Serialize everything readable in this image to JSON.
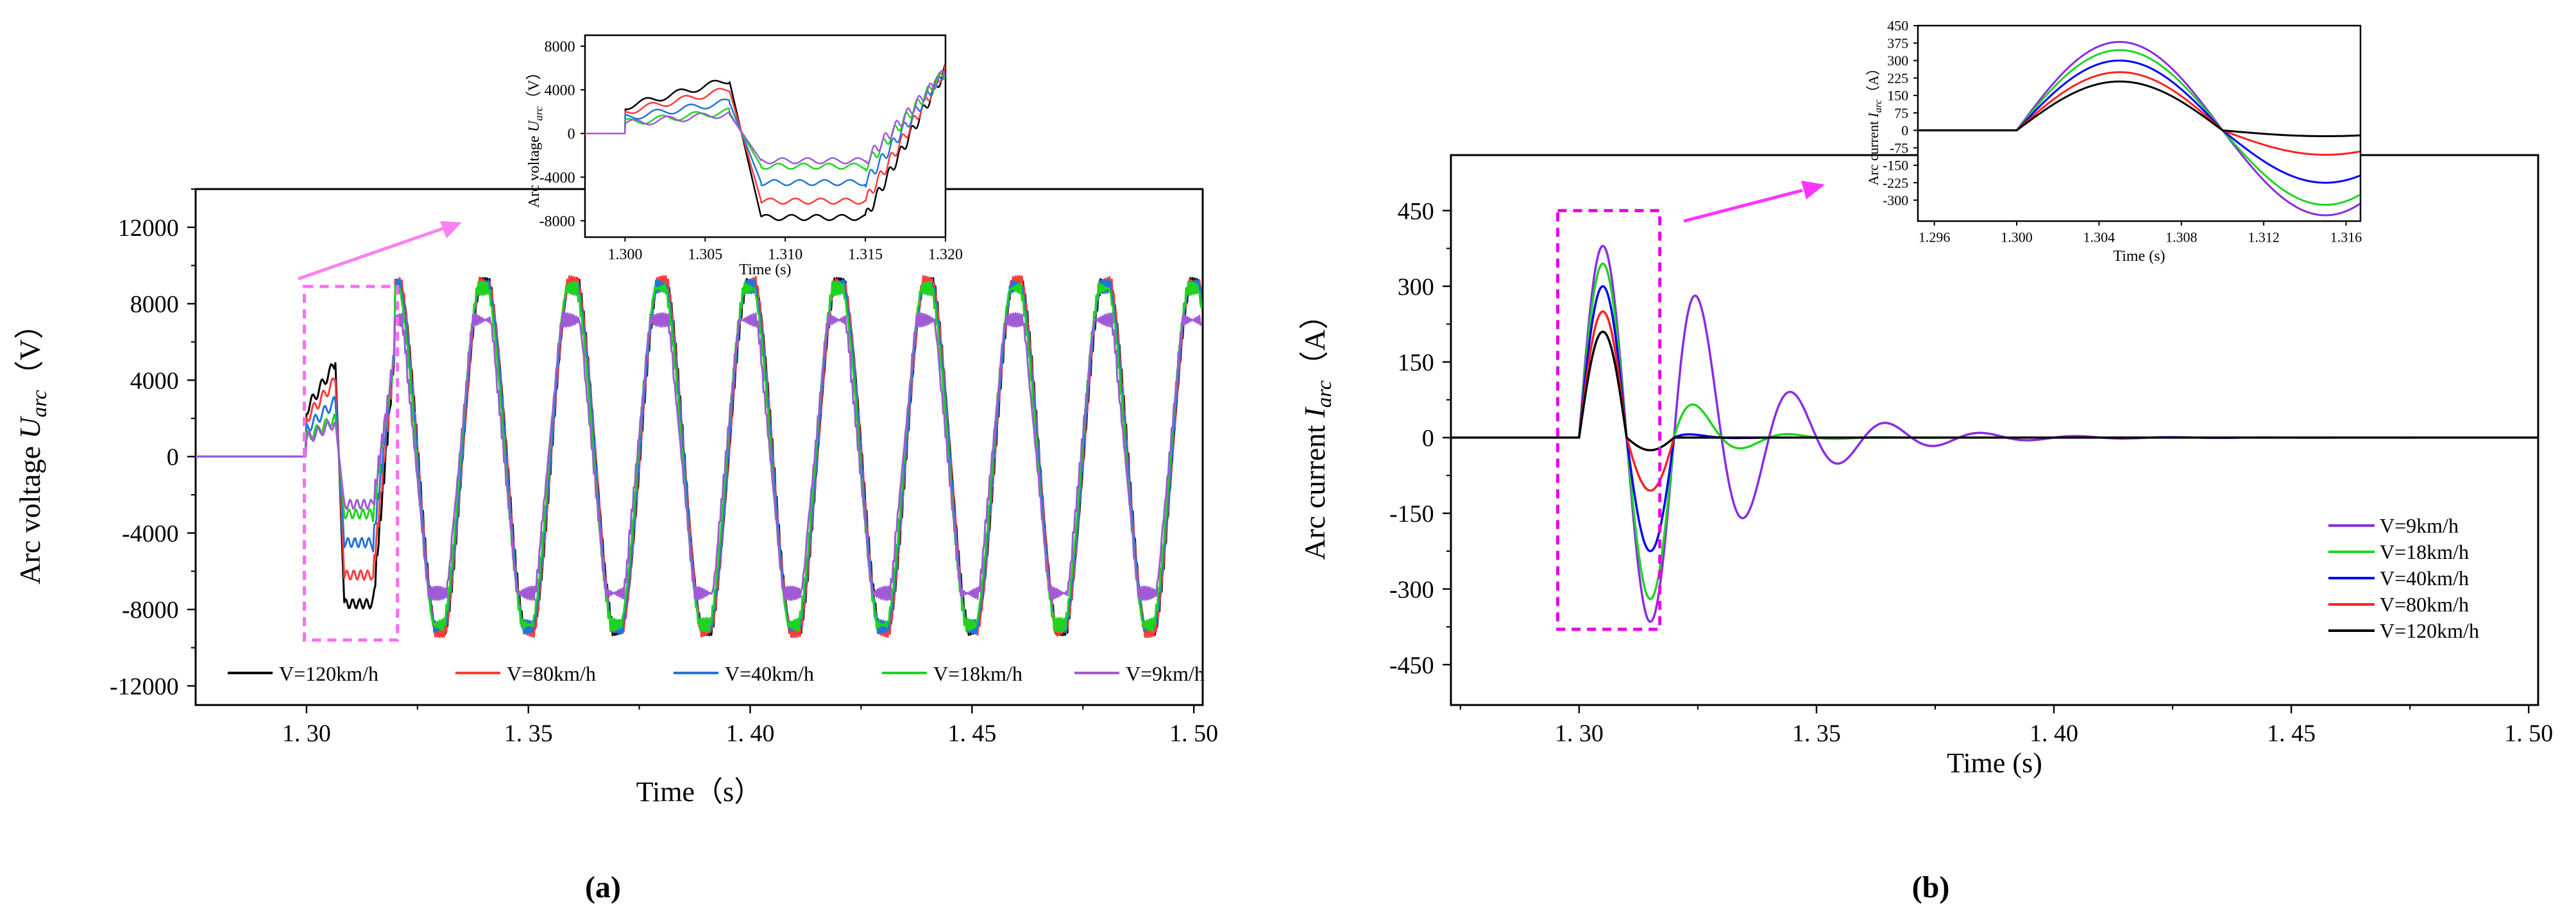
{
  "panels": [
    {
      "id": "a",
      "caption": "(a)",
      "main": {
        "type": "line",
        "xlabel": "Time（s）",
        "ylabel_prefix": "Arc voltage ",
        "ylabel_var": "U",
        "ylabel_sub": "arc",
        "ylabel_suffix": "（V）",
        "xlim": [
          1.275,
          1.502
        ],
        "ylim": [
          -13000,
          14000
        ],
        "xticks": [
          1.3,
          1.35,
          1.4,
          1.45,
          1.5
        ],
        "xtick_labels": [
          "1. 30",
          "1. 35",
          "1. 40",
          "1. 45",
          "1. 50"
        ],
        "yticks": [
          -12000,
          -8000,
          -4000,
          0,
          4000,
          8000,
          12000
        ],
        "ytick_labels": [
          "-12000",
          "-8000",
          "-4000",
          "0",
          "4000",
          "8000",
          "12000"
        ],
        "legend_position": "bottom",
        "legend_order": [
          "V=120km/h",
          "V=80km/h",
          "V=40km/h",
          "V=18km/h",
          "V=9km/h"
        ],
        "zoom_box": {
          "x": [
            1.2995,
            1.3205
          ],
          "y": [
            -9600,
            8900
          ]
        }
      },
      "inset": {
        "type": "line",
        "xlabel": "Time (s)",
        "ylabel_prefix": "Arc voltage ",
        "ylabel_var": "U",
        "ylabel_sub": "arc",
        "ylabel_suffix": "（V）",
        "xlim": [
          1.2975,
          1.32
        ],
        "ylim": [
          -9500,
          9000
        ],
        "xticks": [
          1.3,
          1.305,
          1.31,
          1.315,
          1.32
        ],
        "xtick_labels": [
          "1.300",
          "1.305",
          "1.310",
          "1.315",
          "1.320"
        ],
        "yticks": [
          -8000,
          -4000,
          0,
          4000,
          8000
        ],
        "ytick_labels": [
          "-8000",
          "-4000",
          "0",
          "4000",
          "8000"
        ]
      },
      "series": [
        {
          "name": "V=9km/h",
          "color": "#a05ad6",
          "amp": 8700,
          "phase": 0.15,
          "fault_amp": 1800,
          "fault_neg": 2500
        },
        {
          "name": "V=18km/h",
          "color": "#1fd41f",
          "amp": 8800,
          "phase": 0.08,
          "fault_amp": 2000,
          "fault_neg": 3000
        },
        {
          "name": "V=40km/h",
          "color": "#2375d8",
          "amp": 8900,
          "phase": 0.0,
          "fault_amp": 2900,
          "fault_neg": 4500
        },
        {
          "name": "V=80km/h",
          "color": "#ff3b3b",
          "amp": 9100,
          "phase": -0.04,
          "fault_amp": 4000,
          "fault_neg": 6200
        },
        {
          "name": "V=120km/h",
          "color": "#000000",
          "amp": 9000,
          "phase": -0.06,
          "fault_amp": 4900,
          "fault_neg": 7700
        }
      ]
    },
    {
      "id": "b",
      "caption": "(b)",
      "main": {
        "type": "line",
        "xlabel": "Time (s)",
        "ylabel_prefix": "Arc current ",
        "ylabel_var": "I",
        "ylabel_sub": "arc",
        "ylabel_suffix": "（A）",
        "xlim": [
          1.273,
          1.502
        ],
        "ylim": [
          -530,
          560
        ],
        "xticks": [
          1.3,
          1.35,
          1.4,
          1.45,
          1.5
        ],
        "xtick_labels": [
          "1. 30",
          "1. 35",
          "1. 40",
          "1. 45",
          "1. 50"
        ],
        "yticks": [
          -450,
          -300,
          -150,
          0,
          150,
          300,
          450
        ],
        "ytick_labels": [
          "-450",
          "-300",
          "-150",
          "0",
          "150",
          "300",
          "450"
        ],
        "legend_position": "bottom-right",
        "legend_order": [
          "V=9km/h",
          "V=18km/h",
          "V=40km/h",
          "V=80km/h",
          "V=120km/h"
        ],
        "zoom_box": {
          "x": [
            1.2955,
            1.317
          ],
          "y": [
            -380,
            450
          ]
        }
      },
      "inset": {
        "type": "line",
        "xlabel": "Time (s)",
        "ylabel_prefix": "Arc current ",
        "ylabel_var": "I",
        "ylabel_sub": "arc",
        "ylabel_suffix": "（A）",
        "xlim": [
          1.2952,
          1.3167
        ],
        "ylim": [
          -390,
          450
        ],
        "xticks": [
          1.296,
          1.3,
          1.304,
          1.308,
          1.312,
          1.316
        ],
        "xtick_labels": [
          "1.296",
          "1.300",
          "1.304",
          "1.308",
          "1.312",
          "1.316"
        ],
        "yticks": [
          -300,
          -225,
          -150,
          -75,
          0,
          75,
          150,
          225,
          300,
          375,
          450
        ],
        "ytick_labels": [
          "-300",
          "-225",
          "-150",
          "-75",
          "0",
          "75",
          "150",
          "225",
          "300",
          "375",
          "450"
        ]
      },
      "series": [
        {
          "name": "V=9km/h",
          "color": "#8a2be2",
          "peak": 380,
          "neg": -365,
          "decay": 0.022
        },
        {
          "name": "V=18km/h",
          "color": "#1fd41f",
          "peak": 345,
          "neg": -320,
          "decay": 0.011
        },
        {
          "name": "V=40km/h",
          "color": "#0000ff",
          "peak": 300,
          "neg": -225,
          "decay": 0.006
        },
        {
          "name": "V=80km/h",
          "color": "#ff2020",
          "peak": 250,
          "neg": -105,
          "decay": 0.003
        },
        {
          "name": "V=120km/h",
          "color": "#000000",
          "peak": 210,
          "neg": -25,
          "decay": 0.002
        }
      ]
    }
  ]
}
